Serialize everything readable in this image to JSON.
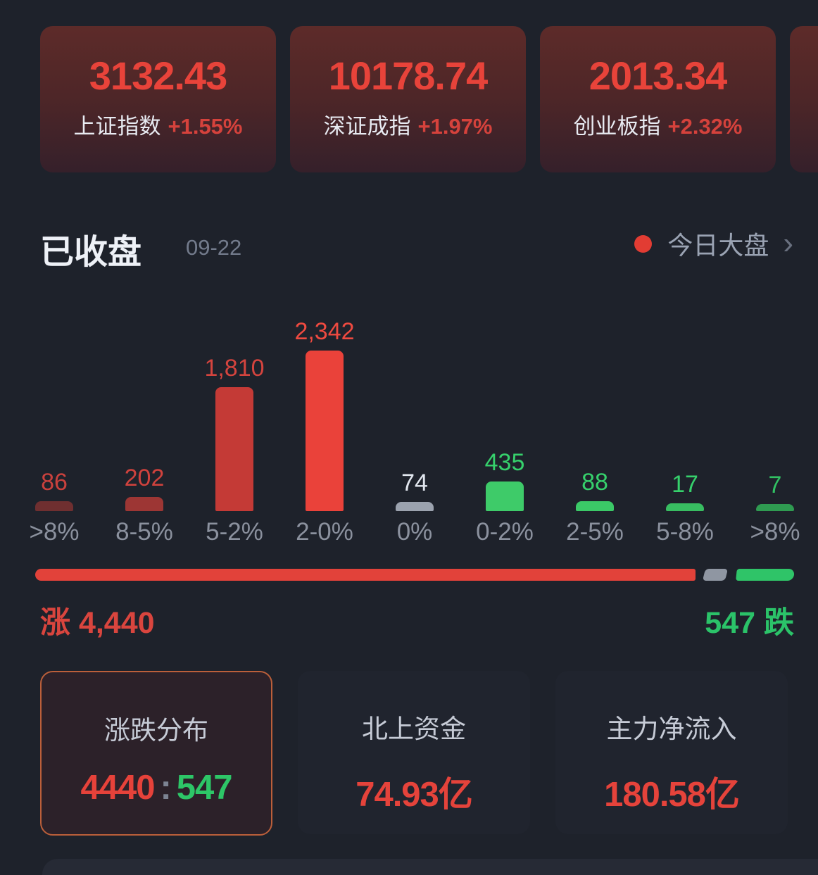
{
  "indices": [
    {
      "value": "3132.43",
      "name": "上证指数",
      "change": "+1.55%"
    },
    {
      "value": "10178.74",
      "name": "深证成指",
      "change": "+1.97%"
    },
    {
      "value": "2013.34",
      "name": "创业板指",
      "change": "+2.32%"
    }
  ],
  "header": {
    "status": "已收盘",
    "date": "09-22",
    "market_link": "今日大盘",
    "chevron": "›",
    "dot_color": "#e23c33"
  },
  "chart_data": {
    "type": "bar",
    "categories": [
      ">8%",
      "8-5%",
      "5-2%",
      "2-0%",
      "0%",
      "0-2%",
      "2-5%",
      "5-8%",
      ">8%"
    ],
    "values": [
      86,
      202,
      1810,
      2342,
      74,
      435,
      88,
      17,
      7
    ],
    "value_labels": [
      "86",
      "202",
      "1,810",
      "2,342",
      "74",
      "435",
      "88",
      "17",
      "7"
    ],
    "bar_colors": [
      "#6f2f30",
      "#9d3634",
      "#c43a36",
      "#ea423a",
      "#9ba2ae",
      "#3ecb69",
      "#3bc967",
      "#38bd61",
      "#2f9b51"
    ],
    "label_colors": [
      "#c9413d",
      "#cf423d",
      "#d4443e",
      "#ee4a40",
      "#e2e7ef",
      "#36d16c",
      "#36d16c",
      "#36d16c",
      "#31c163"
    ],
    "xlabel": "",
    "ylabel": "",
    "grid": false,
    "legend": false,
    "note": "distribution of stocks by daily % change; left red = gainers, right green = losers"
  },
  "ratio_bar": {
    "advancers": 4440,
    "flat": 74,
    "decliners": 547,
    "advancers_label": "涨 4,440",
    "decliners_label": "547 跌",
    "up_color": "#e2423a",
    "flat_color": "#8f96a2",
    "down_color": "#2fc468"
  },
  "summary_cards": [
    {
      "title": "涨跌分布",
      "selected": true,
      "value_parts": [
        {
          "text": "4440",
          "color": "#e6423a"
        },
        {
          "text": ":",
          "color": "#7d8392"
        },
        {
          "text": "547",
          "color": "#2dc667"
        }
      ]
    },
    {
      "title": "北上资金",
      "selected": false,
      "value_parts": [
        {
          "text": "74.93亿",
          "color": "#e5433b"
        }
      ]
    },
    {
      "title": "主力净流入",
      "selected": false,
      "value_parts": [
        {
          "text": "180.58亿",
          "color": "#e5433b"
        }
      ]
    }
  ]
}
